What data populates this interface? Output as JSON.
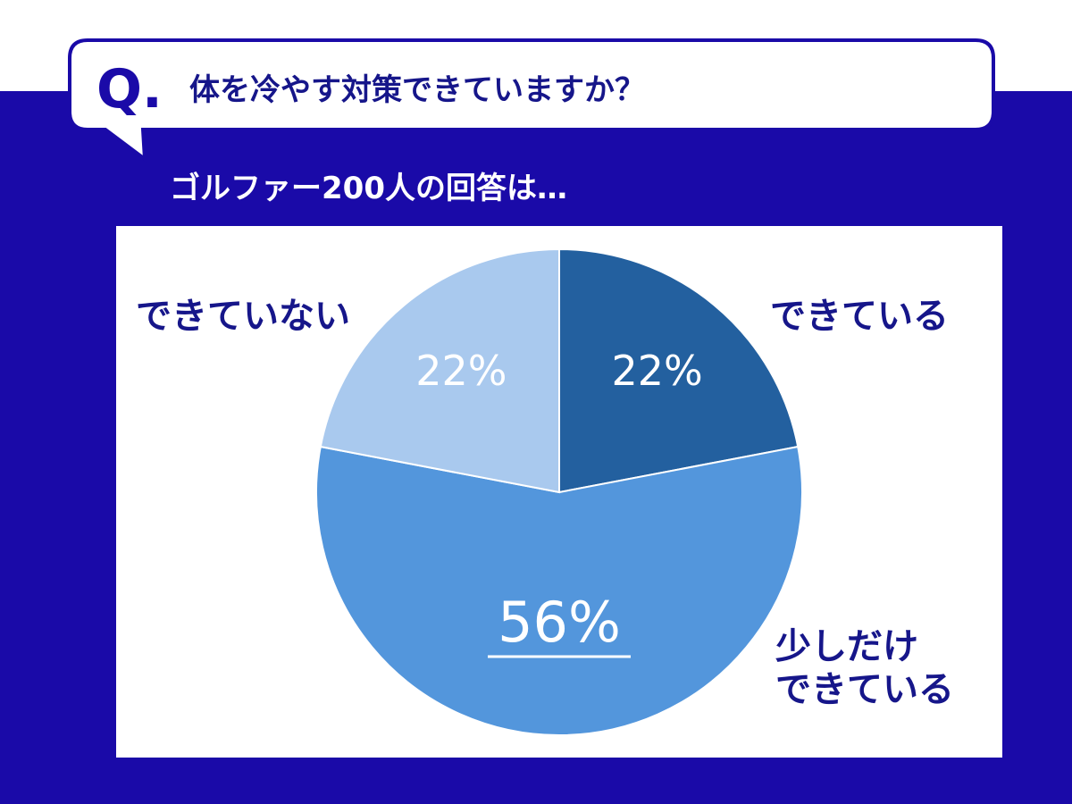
{
  "header": {
    "q_mark": "Q.",
    "question": "体を冷やす対策できていますか？",
    "subtitle": "ゴルファー200人の回答は…"
  },
  "chart_data": {
    "type": "pie",
    "categories": [
      "できている",
      "少しだけ\nできている",
      "できていない"
    ],
    "values": [
      22,
      56,
      22
    ],
    "value_labels": [
      "22%",
      "56%",
      "22%"
    ],
    "colors": [
      "#23609f",
      "#5396dc",
      "#a9c9ee"
    ]
  }
}
